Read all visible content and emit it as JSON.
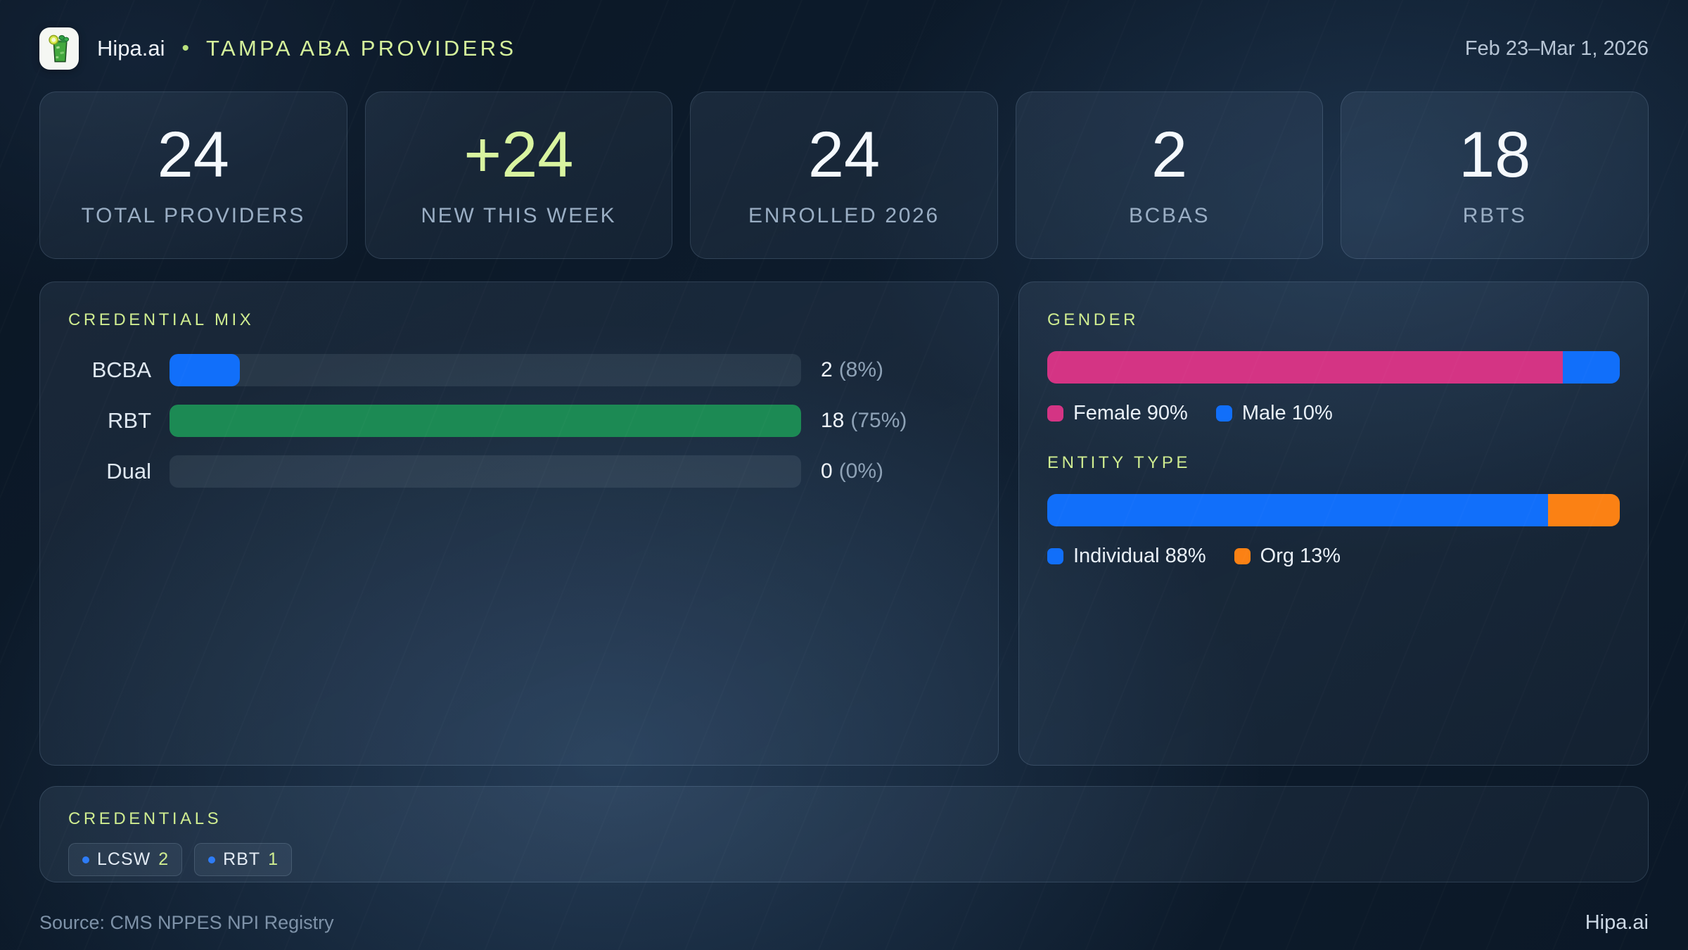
{
  "header": {
    "logo_icon": "mojito-glass-icon",
    "brand": "Hipa.ai",
    "separator": "•",
    "title": "TAMPA ABA PROVIDERS",
    "date_range": "Feb 23–Mar 1, 2026"
  },
  "stats": [
    {
      "value": "24",
      "label": "TOTAL PROVIDERS"
    },
    {
      "value": "+24",
      "label": "NEW THIS WEEK"
    },
    {
      "value": "24",
      "label": "ENROLLED 2026"
    },
    {
      "value": "2",
      "label": "BCBAS"
    },
    {
      "value": "18",
      "label": "RBTS"
    }
  ],
  "credential_mix": {
    "title": "CREDENTIAL MIX",
    "rows": [
      {
        "label": "BCBA",
        "count": "2",
        "percent": "(8%)",
        "fill_pct": 11.1,
        "color": "#116ffa"
      },
      {
        "label": "RBT",
        "count": "18",
        "percent": "(75%)",
        "fill_pct": 100,
        "color": "#1c8a54"
      },
      {
        "label": "Dual",
        "count": "0",
        "percent": "(0%)",
        "fill_pct": 0
      }
    ]
  },
  "gender": {
    "title": "GENDER",
    "segments": [
      {
        "name": "Female",
        "pct": 90,
        "color": "#d43484",
        "legend": "Female 90%"
      },
      {
        "name": "Male",
        "pct": 10,
        "color": "#116ffa",
        "legend": "Male 10%"
      }
    ]
  },
  "entity_type": {
    "title": "ENTITY TYPE",
    "segments": [
      {
        "name": "Individual",
        "pct": 87.5,
        "color": "#116ffa",
        "legend": "Individual 88%"
      },
      {
        "name": "Org",
        "pct": 12.5,
        "color": "#fb8114",
        "legend": "Org 13%"
      }
    ]
  },
  "credentials": {
    "title": "CREDENTIALS",
    "badges": [
      {
        "label": "LCSW",
        "count": "2"
      },
      {
        "label": "RBT",
        "count": "1"
      }
    ]
  },
  "footer": {
    "source": "Source: CMS NPPES NPI Registry",
    "brand": "Hipa.ai"
  },
  "colors": {
    "accent_lime": "#d9f4a0",
    "blue": "#116ffa",
    "green": "#1c8a54",
    "pink": "#d43484",
    "orange": "#fb8114",
    "track": "rgba(215,232,248,0.09)",
    "background": "#0b1827"
  },
  "chart_data": [
    {
      "type": "bar",
      "orientation": "horizontal",
      "title": "CREDENTIAL MIX",
      "categories": [
        "BCBA",
        "RBT",
        "Dual"
      ],
      "values": [
        2,
        18,
        0
      ],
      "value_labels": [
        "2 (8%)",
        "18 (75%)",
        "0 (0%)"
      ],
      "percent_of_total": [
        8,
        75,
        0
      ],
      "total": 24,
      "xlim": [
        0,
        18
      ],
      "bar_colors": [
        "#116ffa",
        "#1c8a54",
        "none"
      ],
      "grid": false
    },
    {
      "type": "stacked-bar",
      "title": "GENDER",
      "categories": [
        "Gender"
      ],
      "series": [
        {
          "name": "Female",
          "values": [
            90
          ],
          "color": "#d43484"
        },
        {
          "name": "Male",
          "values": [
            10
          ],
          "color": "#116ffa"
        }
      ],
      "legend": [
        "Female 90%",
        "Male 10%"
      ],
      "legend_position": "bottom",
      "unit": "%"
    },
    {
      "type": "stacked-bar",
      "title": "ENTITY TYPE",
      "categories": [
        "Entity"
      ],
      "series": [
        {
          "name": "Individual",
          "values": [
            87.5
          ],
          "color": "#116ffa"
        },
        {
          "name": "Org",
          "values": [
            12.5
          ],
          "color": "#fb8114"
        }
      ],
      "legend": [
        "Individual 88%",
        "Org 13%"
      ],
      "legend_position": "bottom",
      "unit": "%"
    }
  ]
}
